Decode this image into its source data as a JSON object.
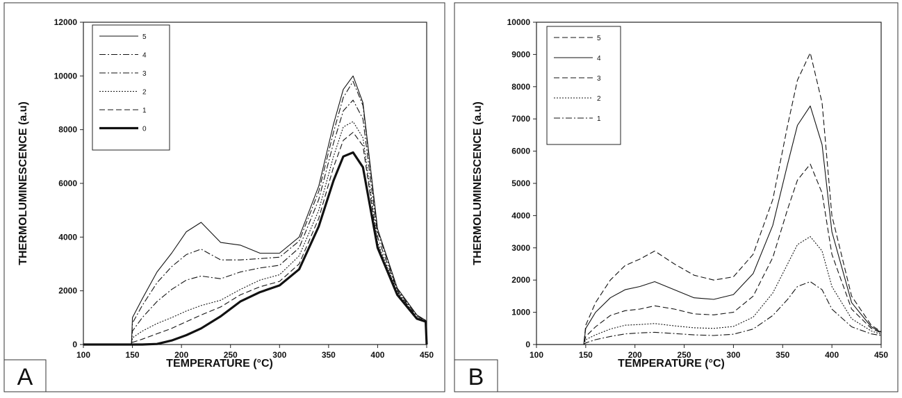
{
  "chart_data": [
    {
      "type": "line",
      "panel_label": "A",
      "xlabel": "TEMPERATURE (°C)",
      "ylabel": "THERMOLUMINESCENCE (a.u)",
      "xlim": [
        100,
        450
      ],
      "ylim": [
        0,
        12000
      ],
      "x_ticks": [
        "100",
        "150",
        "200",
        "250",
        "300",
        "350",
        "400",
        "450"
      ],
      "y_ticks": [
        "0",
        "2000",
        "4000",
        "6000",
        "8000",
        "10000",
        "12000"
      ],
      "legend_position": "top-left",
      "grid": false,
      "x": [
        100,
        149,
        150,
        160,
        175,
        190,
        205,
        220,
        240,
        260,
        280,
        300,
        320,
        340,
        355,
        365,
        375,
        385,
        400,
        420,
        440,
        449,
        450
      ],
      "series": [
        {
          "name": "5",
          "style": "solid",
          "values": [
            0,
            0,
            1000,
            1700,
            2700,
            3400,
            4200,
            4550,
            3800,
            3700,
            3400,
            3400,
            4000,
            5900,
            8200,
            9500,
            10000,
            9000,
            4300,
            2100,
            1100,
            900,
            0
          ]
        },
        {
          "name": "4",
          "style": "dashdot",
          "values": [
            0,
            0,
            800,
            1450,
            2300,
            2900,
            3350,
            3550,
            3150,
            3150,
            3200,
            3250,
            3850,
            5700,
            7900,
            9200,
            9800,
            8900,
            4200,
            2050,
            1050,
            900,
            0
          ]
        },
        {
          "name": "3",
          "style": "dashdot",
          "values": [
            0,
            0,
            500,
            1000,
            1600,
            2050,
            2400,
            2550,
            2450,
            2700,
            2850,
            2950,
            3600,
            5400,
            7500,
            8700,
            9100,
            8400,
            4000,
            2000,
            1000,
            880,
            0
          ]
        },
        {
          "name": "2",
          "style": "dotted",
          "values": [
            0,
            0,
            250,
            500,
            780,
            1000,
            1250,
            1450,
            1650,
            2050,
            2400,
            2600,
            3300,
            5000,
            7000,
            8100,
            8300,
            7700,
            3800,
            1950,
            1000,
            870,
            0
          ]
        },
        {
          "name": "1",
          "style": "dashed",
          "values": [
            0,
            0,
            80,
            200,
            400,
            600,
            850,
            1100,
            1400,
            1850,
            2150,
            2350,
            3000,
            4700,
            6600,
            7600,
            7900,
            7400,
            3700,
            1900,
            980,
            860,
            0
          ]
        },
        {
          "name": "0",
          "style": "thick",
          "values": [
            0,
            0,
            0,
            0,
            20,
            150,
            350,
            600,
            1050,
            1600,
            1950,
            2200,
            2800,
            4400,
            6100,
            7000,
            7150,
            6600,
            3600,
            1850,
            960,
            850,
            0
          ]
        }
      ]
    },
    {
      "type": "line",
      "panel_label": "B",
      "xlabel": "TEMPERATURE (°C)",
      "ylabel": "THERMOLUMINESCENCE (a.u)",
      "xlim": [
        100,
        450
      ],
      "ylim": [
        0,
        10000
      ],
      "x_ticks": [
        "100",
        "150",
        "200",
        "250",
        "300",
        "350",
        "400",
        "450"
      ],
      "y_ticks": [
        "0",
        "1000",
        "2000",
        "3000",
        "4000",
        "5000",
        "6000",
        "7000",
        "8000",
        "9000",
        "10000"
      ],
      "legend_position": "top-left",
      "grid": false,
      "x": [
        100,
        148,
        150,
        160,
        175,
        190,
        205,
        220,
        240,
        260,
        280,
        300,
        320,
        340,
        355,
        365,
        378,
        390,
        400,
        420,
        440,
        450
      ],
      "series": [
        {
          "name": "5",
          "style": "dashed",
          "values": [
            0,
            0,
            600,
            1300,
            2000,
            2450,
            2650,
            2900,
            2500,
            2150,
            2000,
            2100,
            2800,
            4500,
            6800,
            8200,
            9050,
            7500,
            4000,
            1500,
            600,
            400
          ]
        },
        {
          "name": "4",
          "style": "solid",
          "values": [
            0,
            0,
            500,
            1000,
            1450,
            1700,
            1800,
            1950,
            1700,
            1450,
            1400,
            1550,
            2200,
            3700,
            5600,
            6800,
            7400,
            6200,
            3500,
            1300,
            550,
            380
          ]
        },
        {
          "name": "3",
          "style": "dashed",
          "values": [
            0,
            0,
            250,
            550,
            900,
            1050,
            1100,
            1200,
            1100,
            950,
            920,
            1000,
            1500,
            2700,
            4200,
            5100,
            5600,
            4700,
            2800,
            1100,
            500,
            360
          ]
        },
        {
          "name": "2",
          "style": "dotted",
          "values": [
            0,
            0,
            150,
            300,
            480,
            600,
            620,
            650,
            580,
            520,
            500,
            560,
            850,
            1600,
            2500,
            3100,
            3350,
            2900,
            1800,
            800,
            420,
            320
          ]
        },
        {
          "name": "1",
          "style": "dashdot",
          "values": [
            0,
            0,
            50,
            150,
            250,
            330,
            360,
            380,
            340,
            300,
            280,
            320,
            480,
            900,
            1400,
            1800,
            1950,
            1700,
            1100,
            550,
            330,
            280
          ]
        }
      ]
    }
  ]
}
